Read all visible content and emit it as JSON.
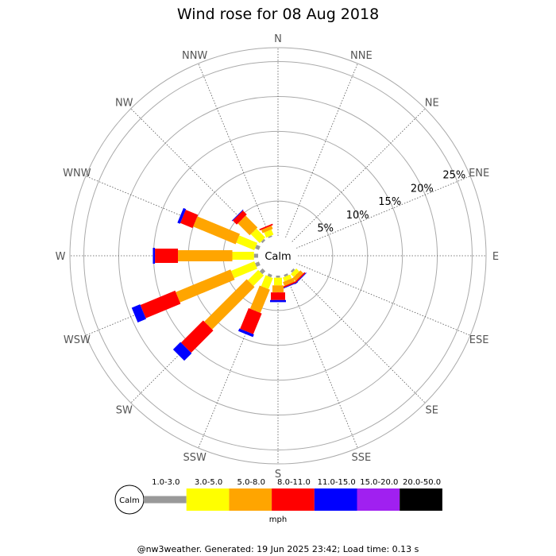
{
  "chart_data": {
    "type": "wind-rose",
    "title": "Wind rose for 08 Aug 2018",
    "calm_label": "Calm",
    "directions": [
      "N",
      "NNE",
      "NE",
      "ENE",
      "E",
      "ESE",
      "SE",
      "SSE",
      "S",
      "SSW",
      "SW",
      "WSW",
      "W",
      "WNW",
      "NW",
      "NNW"
    ],
    "ring_labels": [
      "5%",
      "10%",
      "15%",
      "20%",
      "25%"
    ],
    "ring_values": [
      5,
      10,
      15,
      20,
      25
    ],
    "r_max": 27,
    "unit_label": "mph",
    "speed_bins": [
      {
        "label": "1.0-3.0",
        "color": "#999999"
      },
      {
        "label": "3.0-5.0",
        "color": "#ffff00"
      },
      {
        "label": "5.0-8.0",
        "color": "#ffa500"
      },
      {
        "label": "8.0-11.0",
        "color": "#ff0000"
      },
      {
        "label": "11.0-15.0",
        "color": "#0000ff"
      },
      {
        "label": "15.0-20.0",
        "color": "#a020f0"
      },
      {
        "label": "20.0-50.0",
        "color": "#000000"
      }
    ],
    "series": [
      {
        "direction": "N",
        "values": [
          0,
          0,
          0,
          0,
          0,
          0,
          0
        ]
      },
      {
        "direction": "NNE",
        "values": [
          0,
          0,
          0,
          0,
          0,
          0,
          0
        ]
      },
      {
        "direction": "NE",
        "values": [
          0,
          0,
          0,
          0,
          0,
          0,
          0
        ]
      },
      {
        "direction": "ENE",
        "values": [
          0,
          0,
          0,
          0,
          0,
          0,
          0
        ]
      },
      {
        "direction": "E",
        "values": [
          0,
          0,
          0,
          0,
          0,
          0,
          0
        ]
      },
      {
        "direction": "ESE",
        "values": [
          0,
          0,
          0,
          0,
          0,
          0,
          0
        ]
      },
      {
        "direction": "SE",
        "values": [
          0.3,
          0.6,
          0.6,
          0.2,
          0.1,
          0,
          0
        ]
      },
      {
        "direction": "SSE",
        "values": [
          0.3,
          0.6,
          0.6,
          0.2,
          0.1,
          0,
          0
        ]
      },
      {
        "direction": "S",
        "values": [
          0.3,
          1.1,
          1.0,
          1.1,
          0.3,
          0,
          0
        ]
      },
      {
        "direction": "SSW",
        "values": [
          0.4,
          1.7,
          3.6,
          3.2,
          0.4,
          0,
          0
        ]
      },
      {
        "direction": "SW",
        "values": [
          0.6,
          2.1,
          8.6,
          4.5,
          1.5,
          0,
          0
        ]
      },
      {
        "direction": "WSW",
        "values": [
          0.6,
          3.6,
          8.5,
          5.4,
          1.3,
          0,
          0
        ]
      },
      {
        "direction": "W",
        "values": [
          0.6,
          3.1,
          7.8,
          3.3,
          0.3,
          0,
          0
        ]
      },
      {
        "direction": "WNW",
        "values": [
          0.6,
          2.8,
          6.6,
          1.9,
          0.4,
          0,
          0
        ]
      },
      {
        "direction": "NW",
        "values": [
          0.3,
          1.8,
          2.4,
          0.8,
          0.1,
          0,
          0
        ]
      },
      {
        "direction": "NNW",
        "values": [
          0.2,
          0.8,
          0.5,
          0.2,
          0,
          0,
          0
        ]
      }
    ],
    "grid": true
  },
  "footer": {
    "text": "@nw3weather. Generated: 19 Jun 2025 23:42; Load time: 0.13 s"
  }
}
